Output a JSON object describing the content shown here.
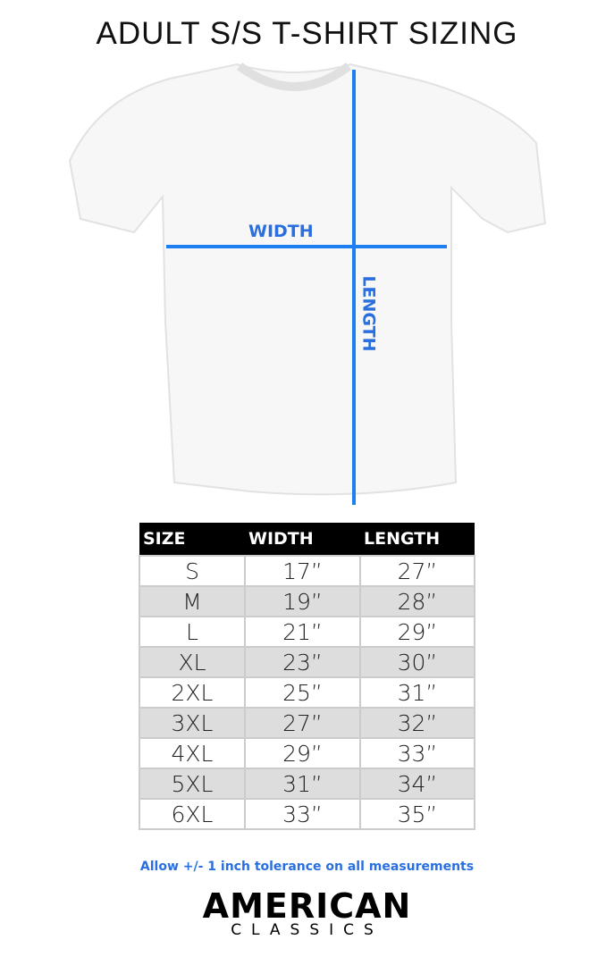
{
  "title": "ADULT S/S T-SHIRT SIZING",
  "diagram": {
    "width_label": "WIDTH",
    "length_label": "LENGTH",
    "line_color": "#1e7ff0"
  },
  "table": {
    "headers": [
      "SIZE",
      "WIDTH",
      "LENGTH"
    ],
    "rows": [
      [
        "S",
        "17”",
        "27”"
      ],
      [
        "M",
        "19”",
        "28”"
      ],
      [
        "L",
        "21”",
        "29”"
      ],
      [
        "XL",
        "23”",
        "30”"
      ],
      [
        "2XL",
        "25”",
        "31”"
      ],
      [
        "3XL",
        "27”",
        "32”"
      ],
      [
        "4XL",
        "29”",
        "33”"
      ],
      [
        "5XL",
        "31”",
        "34”"
      ],
      [
        "6XL",
        "33”",
        "35”"
      ]
    ]
  },
  "note": "Allow +/- 1 inch tolerance on all measurements",
  "logo": {
    "line1": "AMERICAN",
    "line2": "CLASSICS"
  }
}
